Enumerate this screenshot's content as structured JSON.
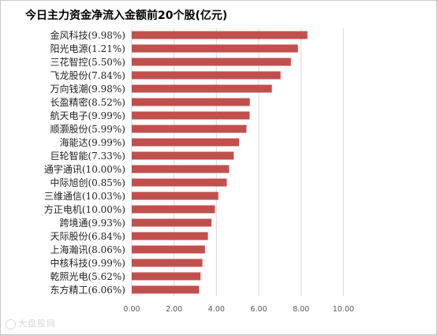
{
  "chart_data": {
    "type": "bar",
    "orientation": "horizontal",
    "title": "今日主力资金净流入金额前20个股(亿元)",
    "categories": [
      "金风科技(9.98%)",
      "阳光电源(1.21%)",
      "三花智控(5.50%)",
      "飞龙股份(7.84%)",
      "万向钱潮(9.98%)",
      "长盈精密(8.52%)",
      "航天电子(9.99%)",
      "顺灏股份(5.99%)",
      "海能达(9.99%)",
      "巨轮智能(7.33%)",
      "通宇通讯(10.00%)",
      "中际旭创(0.85%)",
      "三维通信(10.03%)",
      "方正电机(10.00%)",
      "跨境通(9.93%)",
      "天际股份(6.84%)",
      "上海瀚讯(8.06%)",
      "中核科技(9.99%)",
      "乾照光电(5.62%)",
      "东方精工(6.06%)"
    ],
    "values": [
      8.3,
      7.85,
      7.52,
      7.03,
      6.62,
      5.58,
      5.57,
      5.42,
      5.07,
      4.82,
      4.6,
      4.49,
      4.09,
      3.93,
      3.77,
      3.6,
      3.46,
      3.34,
      3.25,
      3.18
    ],
    "xlim": [
      0,
      12
    ],
    "xticks": [
      "0.00",
      "2.00",
      "4.00",
      "6.00",
      "8.00",
      "10.00"
    ],
    "xtick_values": [
      0,
      2,
      4,
      6,
      8,
      10
    ],
    "xlabel": "",
    "ylabel": "",
    "grid": "vertical",
    "legend": "none",
    "bar_color": "#c0504d"
  },
  "watermark": {
    "text": "大盘股网"
  }
}
